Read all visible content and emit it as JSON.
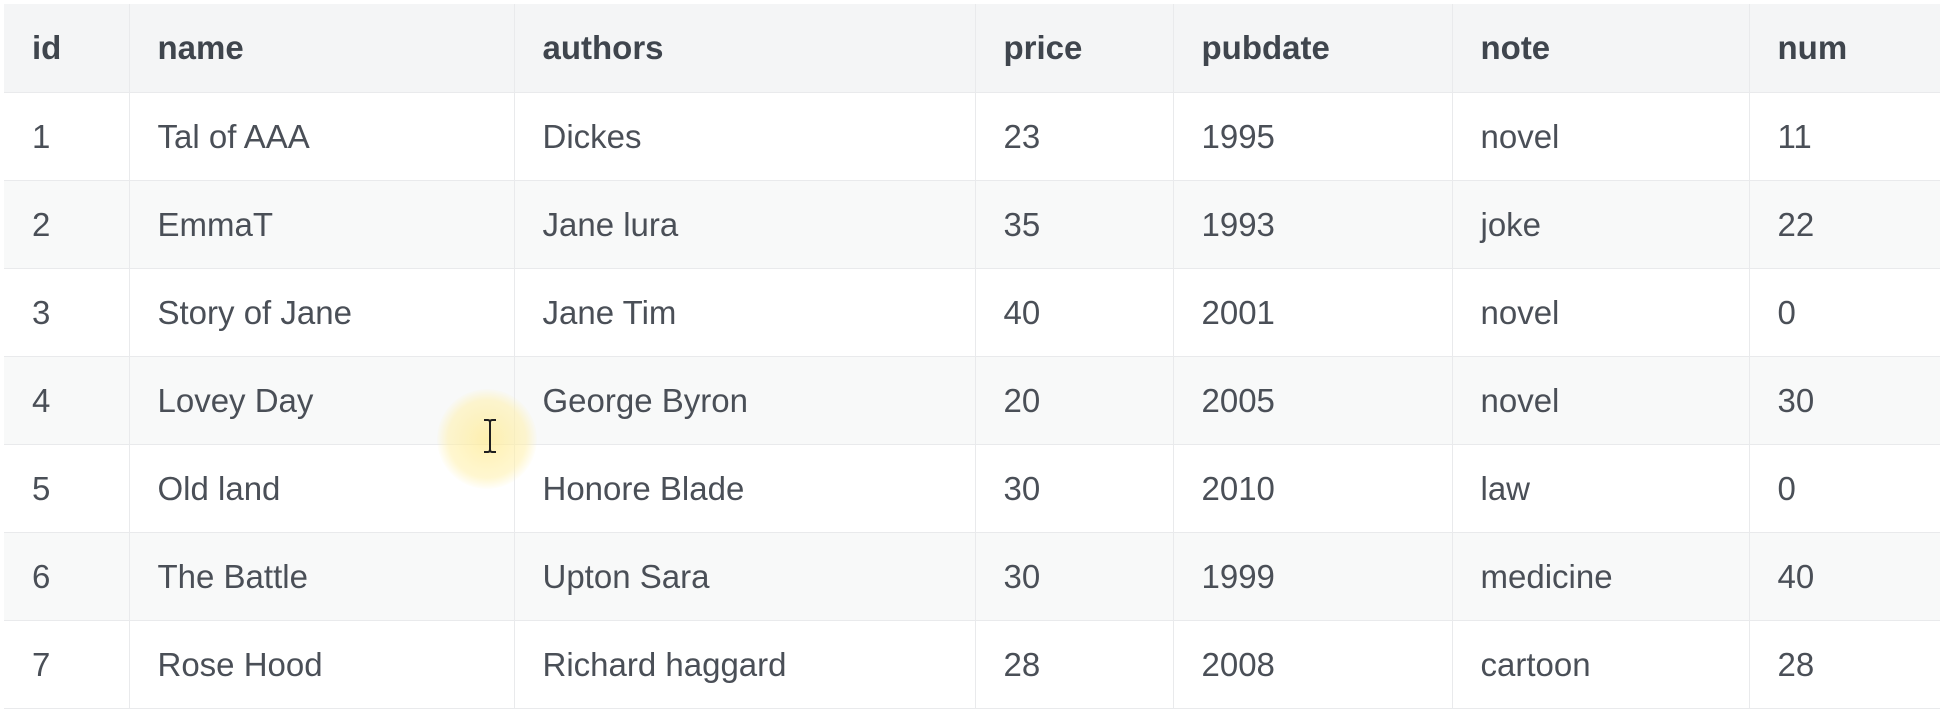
{
  "table": {
    "columns": [
      "id",
      "name",
      "authors",
      "price",
      "pubdate",
      "note",
      "num"
    ],
    "rows": [
      [
        "1",
        "Tal of AAA",
        "Dickes",
        "23",
        "1995",
        "novel",
        "11"
      ],
      [
        "2",
        "EmmaT",
        "Jane lura",
        "35",
        "1993",
        "joke",
        "22"
      ],
      [
        "3",
        "Story of Jane",
        "Jane Tim",
        "40",
        "2001",
        "novel",
        "0"
      ],
      [
        "4",
        "Lovey Day",
        "George Byron",
        "20",
        "2005",
        "novel",
        "30"
      ],
      [
        "5",
        "Old land",
        "Honore Blade",
        "30",
        "2010",
        "law",
        "0"
      ],
      [
        "6",
        "The Battle",
        "Upton Sara",
        "30",
        "1999",
        "medicine",
        "40"
      ],
      [
        "7",
        "Rose Hood",
        "Richard haggard",
        "28",
        "2008",
        "cartoon",
        "28"
      ]
    ]
  },
  "cursor": {
    "icon": "text-cursor-icon",
    "halo_color": "#fff0a8"
  }
}
